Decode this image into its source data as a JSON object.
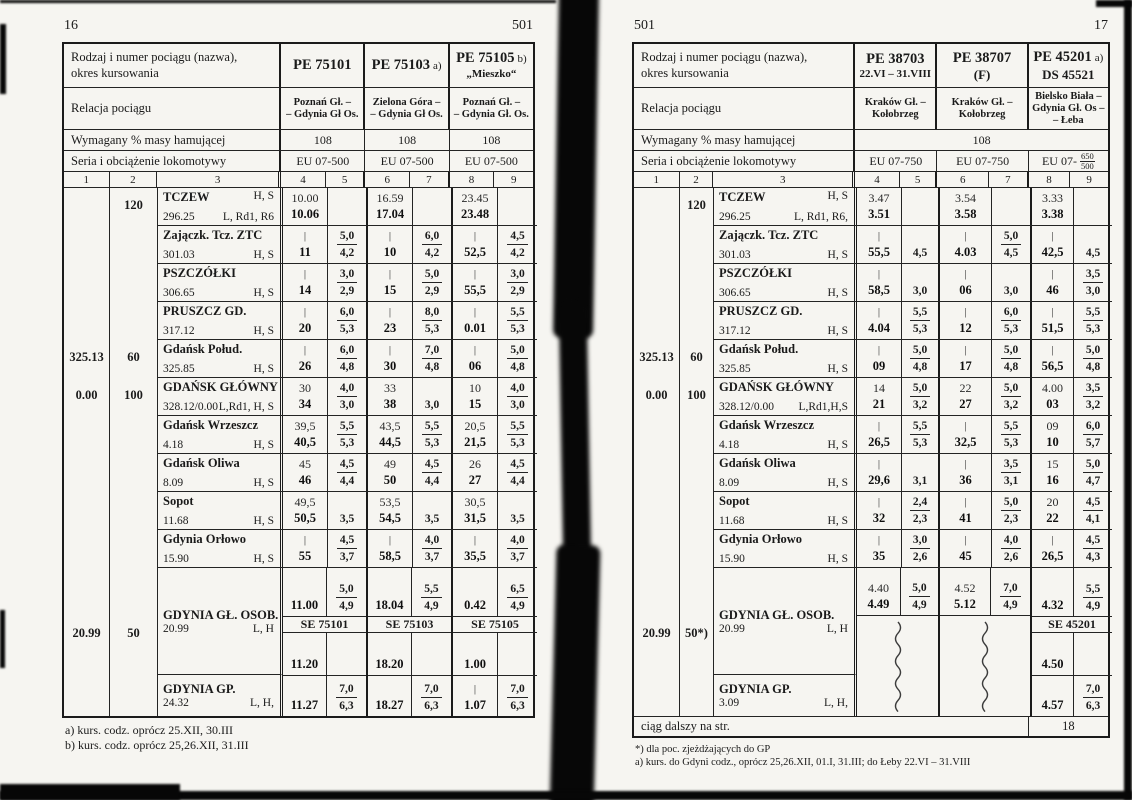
{
  "pages": [
    {
      "corner_left": "16",
      "corner_right": "501",
      "header": {
        "train_label_line1": "Rodzaj i numer pociągu (nazwa),",
        "train_label_line2": "okres kursowania",
        "relacja_label": "Relacja pociągu",
        "brake_label": "Wymagany % masy hamującej",
        "loco_label": "Seria i obciążenie lokomotywy",
        "trains": [
          {
            "title": "PE 75101",
            "note": "",
            "sub": ""
          },
          {
            "title": "PE 75103",
            "note": "a)",
            "sub": ""
          },
          {
            "title": "PE 75105",
            "note": "b)",
            "sub": "„Mieszko“"
          }
        ],
        "routes": [
          [
            "Poznań Gł. –",
            "– Gdynia Gł Os."
          ],
          [
            "Zielona Góra –",
            "– Gdynia Gł Os."
          ],
          [
            "Poznań Gł. –",
            "– Gdynia Gł. Os."
          ]
        ],
        "brake_span": false,
        "brake_values": [
          "108",
          "108",
          "108"
        ],
        "loco_values": [
          {
            "text": "EU 07-500"
          },
          {
            "text": "EU 07-500"
          },
          {
            "text": "EU 07-500"
          }
        ],
        "column_numbers": [
          "1",
          "2",
          "3",
          "4",
          "5",
          "6",
          "7",
          "8",
          "9"
        ]
      },
      "stations": [
        {
          "c2": "120",
          "name": "TCZEW",
          "name_sym": "H, S",
          "km": "296.25",
          "km_sym": "L, Rd1, R6",
          "times": [
            [
              "",
              "10.00|10.06"
            ],
            [
              "",
              "16.59|17.04"
            ],
            [
              "",
              "23.45|23.48"
            ]
          ],
          "t": [
            [
              "10.00",
              "10.06"
            ],
            [
              "16.59",
              "17.04"
            ],
            [
              "23.45",
              "23.48"
            ]
          ],
          "fracs": [
            [
              "",
              ""
            ],
            [
              "",
              ""
            ],
            [
              "",
              ""
            ]
          ]
        },
        {
          "name": "Zajączk. Tcz. ZTC",
          "name_sym": "",
          "km": "301.03",
          "km_sym": "H, S",
          "t": [
            [
              "|",
              "11"
            ],
            [
              "|",
              "10"
            ],
            [
              "|",
              "52,5"
            ]
          ],
          "fracs": [
            [
              "5,0",
              "4,2"
            ],
            [
              "6,0",
              "4,2"
            ],
            [
              "4,5",
              "4,2"
            ]
          ]
        },
        {
          "name": "PSZCZÓŁKI",
          "name_sym": "",
          "km": "306.65",
          "km_sym": "H, S",
          "t": [
            [
              "|",
              "14"
            ],
            [
              "|",
              "15"
            ],
            [
              "|",
              "55,5"
            ]
          ],
          "fracs": [
            [
              "3,0",
              "2,9"
            ],
            [
              "5,0",
              "2,9"
            ],
            [
              "3,0",
              "2,9"
            ]
          ]
        },
        {
          "name": "PRUSZCZ GD.",
          "name_sym": "",
          "km": "317.12",
          "km_sym": "H, S",
          "t": [
            [
              "|",
              "20"
            ],
            [
              "|",
              "23"
            ],
            [
              "|",
              "0.01"
            ]
          ],
          "fracs": [
            [
              "6,0",
              "5,3"
            ],
            [
              "8,0",
              "5,3"
            ],
            [
              "5,5",
              "5,3"
            ]
          ]
        },
        {
          "c1": "325.13",
          "c2": "60",
          "name": "Gdańsk Połud.",
          "name_sym": "",
          "km": "325.85",
          "km_sym": "H, S",
          "t": [
            [
              "|",
              "26"
            ],
            [
              "|",
              "30"
            ],
            [
              "|",
              "06"
            ]
          ],
          "fracs": [
            [
              "6,0",
              "4,8"
            ],
            [
              "7,0",
              "4,8"
            ],
            [
              "5,0",
              "4,8"
            ]
          ]
        },
        {
          "c1": "0.00",
          "c2": "100",
          "name": "GDAŃSK GŁÓWNY",
          "name_sym": "",
          "km": "328.12/0.00",
          "km_sym": "L,Rd1, H, S",
          "t": [
            [
              "30",
              "34"
            ],
            [
              "33",
              "38"
            ],
            [
              "10",
              "15"
            ]
          ],
          "fracs": [
            [
              "4,0",
              "3,0"
            ],
            [
              "",
              "3,0"
            ],
            [
              "4,0",
              "3,0"
            ]
          ]
        },
        {
          "name": "Gdańsk Wrzeszcz",
          "name_sym": "",
          "km": "4.18",
          "km_sym": "H, S",
          "t": [
            [
              "39,5",
              "40,5"
            ],
            [
              "43,5",
              "44,5"
            ],
            [
              "20,5",
              "21,5"
            ]
          ],
          "fracs": [
            [
              "5,5",
              "5,3"
            ],
            [
              "5,5",
              "5,3"
            ],
            [
              "5,5",
              "5,3"
            ]
          ]
        },
        {
          "name": "Gdańsk Oliwa",
          "name_sym": "",
          "km": "8.09",
          "km_sym": "H, S",
          "t": [
            [
              "45",
              "46"
            ],
            [
              "49",
              "50"
            ],
            [
              "26",
              "27"
            ]
          ],
          "fracs": [
            [
              "4,5",
              "4,4"
            ],
            [
              "4,5",
              "4,4"
            ],
            [
              "4,5",
              "4,4"
            ]
          ]
        },
        {
          "name": "Sopot",
          "name_sym": "",
          "km": "11.68",
          "km_sym": "H, S",
          "t": [
            [
              "49,5",
              "50,5"
            ],
            [
              "53,5",
              "54,5"
            ],
            [
              "30,5",
              "31,5"
            ]
          ],
          "fracs": [
            [
              "",
              "3,5"
            ],
            [
              "",
              "3,5"
            ],
            [
              "",
              "3,5"
            ]
          ]
        },
        {
          "name": "Gdynia Orłowo",
          "name_sym": "",
          "km": "15.90",
          "km_sym": "H, S",
          "t": [
            [
              "|",
              "55"
            ],
            [
              "|",
              "58,5"
            ],
            [
              "|",
              "35,5"
            ]
          ],
          "fracs": [
            [
              "4,5",
              "3,7"
            ],
            [
              "4,0",
              "3,7"
            ],
            [
              "4,0",
              "3,7"
            ]
          ]
        }
      ],
      "terminal": {
        "c1": "20.99",
        "c2": "50",
        "name": "GDYNIA GŁ. OSOB.",
        "km": "20.99",
        "km_sym": "L, H",
        "arr_times": [
          [
            "",
            "11.00"
          ],
          [
            "",
            "18.04"
          ],
          [
            "",
            "0.42"
          ]
        ],
        "arr_fracs": [
          [
            "5,0",
            "4,9"
          ],
          [
            "5,5",
            "4,9"
          ],
          [
            "6,5",
            "4,9"
          ]
        ],
        "band": [
          "SE 75101",
          "SE 75103",
          "SE 75105"
        ],
        "dep": [
          "11.20",
          "18.20",
          "1.00"
        ],
        "squiggle_groups": [
          false,
          false,
          false
        ]
      },
      "gp": {
        "name": "GDYNIA GP.",
        "km": "24.32",
        "km_sym": "L, H,",
        "t": [
          [
            "",
            "11.27"
          ],
          [
            "",
            "18.27"
          ],
          [
            "|",
            "1.07"
          ]
        ],
        "fracs": [
          [
            "7,0",
            "6,3"
          ],
          [
            "7,0",
            "6,3"
          ],
          [
            "7,0",
            "6,3"
          ]
        ]
      },
      "footnotes": [
        "a) kurs. codz. oprócz 25.XII, 30.III",
        "b) kurs. codz. oprócz 25,26.XII, 31.III"
      ]
    },
    {
      "corner_left": "501",
      "corner_right": "17",
      "header": {
        "train_label_line1": "Rodzaj i numer pociągu (nazwa),",
        "train_label_line2": "okres kursowania",
        "relacja_label": "Relacja pociągu",
        "brake_label": "Wymagany % masy hamującej",
        "loco_label": "Seria i obciążenie lokomotywy",
        "trains": [
          {
            "title": "PE 38703",
            "note": "",
            "sub": "22.VI – 31.VIII"
          },
          {
            "title": "PE 38707",
            "note": "",
            "sub": "(F)",
            "sub_big": true
          },
          {
            "title": "PE 45201",
            "note": "a)",
            "sub": "DS 45521",
            "sub_big": true
          }
        ],
        "routes": [
          [
            "Kraków Gł. –",
            "Kołobrzeg"
          ],
          [
            "Kraków Gł. –",
            "Kołobrzeg"
          ],
          [
            "Bielsko Biała –",
            "Gdynia Gł. Os –",
            "– Łeba"
          ]
        ],
        "brake_span": true,
        "brake_values": [
          "108"
        ],
        "loco_values": [
          {
            "text": "EU 07-750"
          },
          {
            "text": "EU 07-750"
          },
          {
            "text": "EU 07-",
            "ftop": "650",
            "fbot": "500"
          }
        ],
        "column_numbers": [
          "1",
          "2",
          "3",
          "4",
          "5",
          "6",
          "7",
          "8",
          "9"
        ]
      },
      "stations": [
        {
          "c2": "120",
          "name": "TCZEW",
          "name_sym": "H, S",
          "km": "296.25",
          "km_sym": "L, Rd1, R6,",
          "t": [
            [
              "3.47",
              "3.51"
            ],
            [
              "3.54",
              "3.58"
            ],
            [
              "3.33",
              "3.38"
            ]
          ],
          "fracs": [
            [
              "",
              ""
            ],
            [
              "",
              ""
            ],
            [
              "",
              ""
            ]
          ]
        },
        {
          "name": "Zajączk. Tcz. ZTC",
          "name_sym": "",
          "km": "301.03",
          "km_sym": "H, S",
          "t": [
            [
              "|",
              "55,5"
            ],
            [
              "|",
              "4.03"
            ],
            [
              "|",
              "42,5"
            ]
          ],
          "fracs": [
            [
              "",
              "4,5"
            ],
            [
              "5,0",
              "4,5"
            ],
            [
              "",
              "4,5"
            ]
          ]
        },
        {
          "name": "PSZCZÓŁKI",
          "name_sym": "",
          "km": "306.65",
          "km_sym": "H, S",
          "t": [
            [
              "|",
              "58,5"
            ],
            [
              "|",
              "06"
            ],
            [
              "|",
              "46"
            ]
          ],
          "fracs": [
            [
              "",
              "3,0"
            ],
            [
              "",
              "3,0"
            ],
            [
              "3,5",
              "3,0"
            ]
          ]
        },
        {
          "name": "PRUSZCZ GD.",
          "name_sym": "",
          "km": "317.12",
          "km_sym": "H, S",
          "t": [
            [
              "|",
              "4.04"
            ],
            [
              "|",
              "12"
            ],
            [
              "|",
              "51,5"
            ]
          ],
          "fracs": [
            [
              "5,5",
              "5,3"
            ],
            [
              "6,0",
              "5,3"
            ],
            [
              "5,5",
              "5,3"
            ]
          ]
        },
        {
          "c1": "325.13",
          "c2": "60",
          "name": "Gdańsk Połud.",
          "name_sym": "",
          "km": "325.85",
          "km_sym": "H, S",
          "t": [
            [
              "|",
              "09"
            ],
            [
              "|",
              "17"
            ],
            [
              "|",
              "56,5"
            ]
          ],
          "fracs": [
            [
              "5,0",
              "4,8"
            ],
            [
              "5,0",
              "4,8"
            ],
            [
              "5,0",
              "4,8"
            ]
          ]
        },
        {
          "c1": "0.00",
          "c2": "100",
          "name": "GDAŃSK GŁÓWNY",
          "name_sym": "",
          "km": "328.12/0.00",
          "km_sym": "L,Rd1,H,S",
          "t": [
            [
              "14",
              "21"
            ],
            [
              "22",
              "27"
            ],
            [
              "4.00",
              "03"
            ]
          ],
          "fracs": [
            [
              "5,0",
              "3,2"
            ],
            [
              "5,0",
              "3,2"
            ],
            [
              "3,5",
              "3,2"
            ]
          ]
        },
        {
          "name": "Gdańsk Wrzeszcz",
          "name_sym": "",
          "km": "4.18",
          "km_sym": "H, S",
          "t": [
            [
              "|",
              "26,5"
            ],
            [
              "|",
              "32,5"
            ],
            [
              "09",
              "10"
            ]
          ],
          "fracs": [
            [
              "5,5",
              "5,3"
            ],
            [
              "5,5",
              "5,3"
            ],
            [
              "6,0",
              "5,7"
            ]
          ]
        },
        {
          "name": "Gdańsk Oliwa",
          "name_sym": "",
          "km": "8.09",
          "km_sym": "H, S",
          "t": [
            [
              "|",
              "29,6"
            ],
            [
              "|",
              "36"
            ],
            [
              "15",
              "16"
            ]
          ],
          "fracs": [
            [
              "",
              "3,1"
            ],
            [
              "3,5",
              "3,1"
            ],
            [
              "5,0",
              "4,7"
            ]
          ]
        },
        {
          "name": "Sopot",
          "name_sym": "",
          "km": "11.68",
          "km_sym": "H, S",
          "t": [
            [
              "|",
              "32"
            ],
            [
              "|",
              "41"
            ],
            [
              "20",
              "22"
            ]
          ],
          "fracs": [
            [
              "2,4",
              "2,3"
            ],
            [
              "5,0",
              "2,3"
            ],
            [
              "4,5",
              "4,1"
            ]
          ]
        },
        {
          "name": "Gdynia Orłowo",
          "name_sym": "",
          "km": "15.90",
          "km_sym": "H, S",
          "t": [
            [
              "|",
              "35"
            ],
            [
              "|",
              "45"
            ],
            [
              "|",
              "26,5"
            ]
          ],
          "fracs": [
            [
              "3,0",
              "2,6"
            ],
            [
              "4,0",
              "2,6"
            ],
            [
              "4,5",
              "4,3"
            ]
          ]
        }
      ],
      "terminal": {
        "c1": "20.99",
        "c2": "50*)",
        "name": "GDYNIA GŁ. OSOB.",
        "km": "20.99",
        "km_sym": "L, H",
        "arr_times": [
          [
            "4.40",
            "4.49"
          ],
          [
            "4.52",
            "5.12"
          ],
          [
            "",
            "4.32"
          ]
        ],
        "arr_fracs": [
          [
            "5,0",
            "4,9"
          ],
          [
            "7,0",
            "4,9"
          ],
          [
            "5,5",
            "4,9"
          ]
        ],
        "band": [
          "",
          "",
          "SE 45201"
        ],
        "dep": [
          "",
          "",
          "4.50"
        ],
        "squiggle_groups": [
          true,
          true,
          false
        ]
      },
      "gp": {
        "name": "GDYNIA GP.",
        "km": "3.09",
        "km_sym": "L, H,",
        "t": [
          [
            "",
            ""
          ],
          [
            "",
            ""
          ],
          [
            "",
            "4.57"
          ]
        ],
        "fracs": [
          [
            "",
            ""
          ],
          [
            "",
            ""
          ],
          [
            "7,0",
            "6,3"
          ]
        ]
      },
      "continuation": {
        "label": "ciąg dalszy na str.",
        "page": "18"
      },
      "footnotes": [
        "*) dla poc. zjeżdżających do GP",
        "a) kurs. do Gdyni codz., oprócz 25,26.XII, 01.I, 31.III; do Łeby 22.VI – 31.VIII"
      ]
    }
  ]
}
